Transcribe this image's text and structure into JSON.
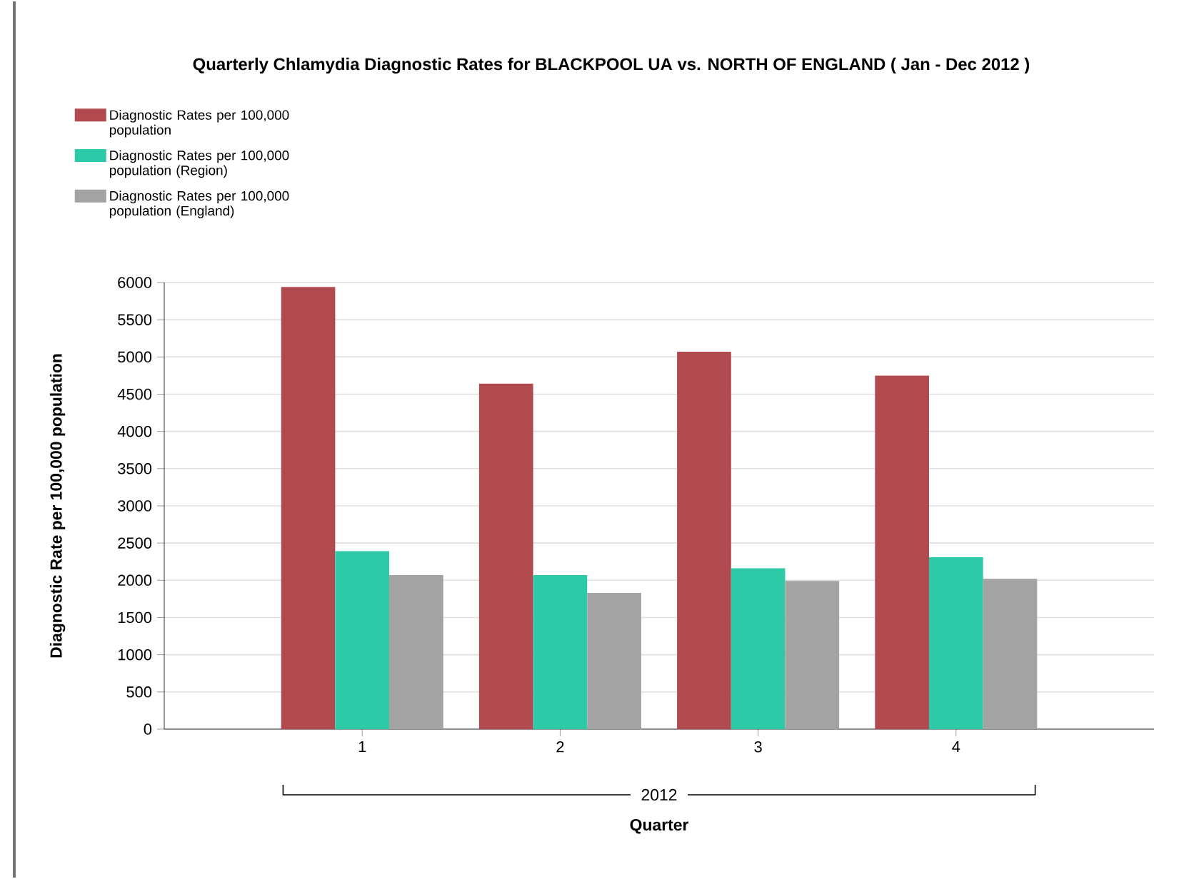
{
  "chart_data": {
    "type": "bar",
    "title": "Quarterly Chlamydia Diagnostic Rates for BLACKPOOL UA vs. NORTH OF ENGLAND ( Jan - Dec 2012 )",
    "xlabel": "Quarter",
    "ylabel": "Diagnostic Rate per 100,000 population",
    "categories": [
      "1",
      "2",
      "3",
      "4"
    ],
    "series": [
      {
        "name": "Diagnostic Rates per 100,000 population",
        "color": "#b04a4f",
        "values": [
          5940,
          4640,
          5070,
          4750
        ]
      },
      {
        "name": "Diagnostic Rates per 100,000 population (Region)",
        "color": "#2ec9a6",
        "values": [
          2390,
          2070,
          2160,
          2310
        ]
      },
      {
        "name": "Diagnostic Rates per 100,000 population (England)",
        "color": "#a3a3a3",
        "values": [
          2070,
          1830,
          1990,
          2020
        ]
      }
    ],
    "ylim": [
      0,
      6000
    ],
    "yticks": [
      0,
      500,
      1000,
      1500,
      2000,
      2500,
      3000,
      3500,
      4000,
      4500,
      5000,
      5500,
      6000
    ],
    "grid": "y",
    "legend": "top left",
    "annotations": [
      "2012"
    ]
  }
}
